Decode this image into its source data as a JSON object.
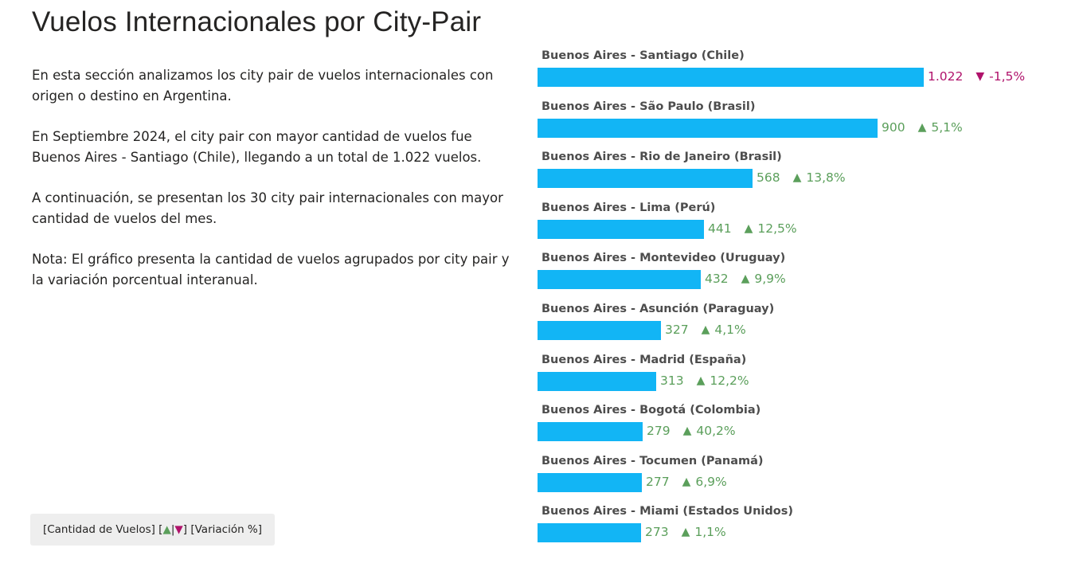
{
  "page": {
    "title": "Vuelos Internacionales por City-Pair",
    "paragraphs": [
      "En esta sección analizamos los city pair de vuelos internacionales con origen o destino en Argentina.",
      "En Septiembre 2024, el city pair con mayor cantidad de vuelos fue Buenos Aires - Santiago (Chile), llegando a un total de 1.022 vuelos.",
      "A continuación, se presentan los 30 city pair internacionales con mayor cantidad de vuelos del mes.",
      "Nota: El gráfico presenta la cantidad de vuelos agrupados por city pair y la variación porcentual interanual."
    ],
    "legend": {
      "prefix": "[Cantidad de Vuelos] [",
      "up_symbol": "▲",
      "separator": "|",
      "down_symbol": "▼",
      "suffix": "] [Variación %]"
    }
  },
  "colors": {
    "bar": "#12b5f5",
    "positive": "#5b9f5b",
    "negative": "#b0126b"
  },
  "chart_data": {
    "type": "bar",
    "orientation": "horizontal",
    "categories": [
      "Buenos Aires - Santiago (Chile)",
      "Buenos Aires - São Paulo (Brasil)",
      "Buenos Aires - Rio de Janeiro (Brasil)",
      "Buenos Aires - Lima (Perú)",
      "Buenos Aires - Montevideo (Uruguay)",
      "Buenos Aires - Asunción (Paraguay)",
      "Buenos Aires - Madrid (España)",
      "Buenos Aires - Bogotá (Colombia)",
      "Buenos Aires - Tocumen (Panamá)",
      "Buenos Aires - Miami (Estados Unidos)"
    ],
    "values": [
      1022,
      900,
      568,
      441,
      432,
      327,
      313,
      279,
      277,
      273
    ],
    "value_labels": [
      "1.022",
      "900",
      "568",
      "441",
      "432",
      "327",
      "313",
      "279",
      "277",
      "273"
    ],
    "variation_labels": [
      "-1,5%",
      "5,1%",
      "13,8%",
      "12,5%",
      "9,9%",
      "4,1%",
      "12,2%",
      "40,2%",
      "6,9%",
      "1,1%"
    ],
    "variation_direction": [
      "down",
      "up",
      "up",
      "up",
      "up",
      "up",
      "up",
      "up",
      "up",
      "up"
    ],
    "xlim": [
      0,
      1022
    ]
  }
}
